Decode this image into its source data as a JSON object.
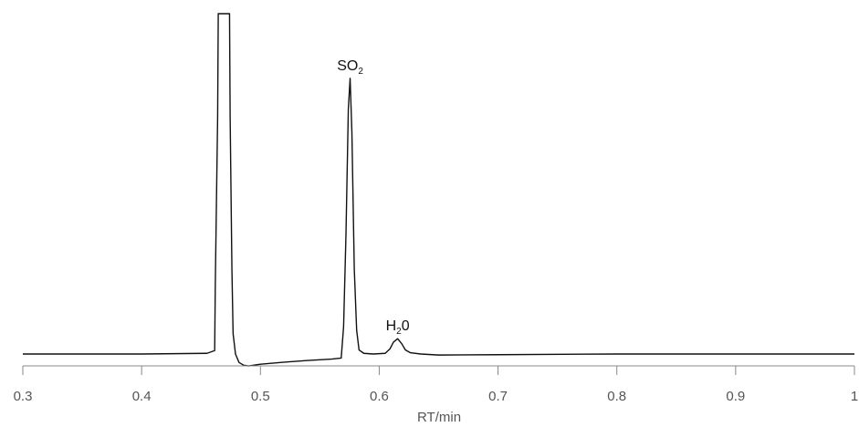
{
  "chart_data": {
    "type": "line",
    "title": "",
    "xlabel": "RT/min",
    "ylabel": "",
    "xlim": [
      0.3,
      1.0
    ],
    "ylim": [
      -0.04,
      1.0
    ],
    "grid": false,
    "legend": "none",
    "line_color": "#111111",
    "axis_color": "#888888",
    "x_ticks": [
      0.3,
      0.4,
      0.5,
      0.6,
      0.7,
      0.8,
      0.9,
      1.0
    ],
    "x_tick_labels": [
      "0.3",
      "0.4",
      "0.5",
      "0.6",
      "0.7",
      "0.8",
      "0.9",
      "1"
    ],
    "series": [
      {
        "name": "",
        "x": [
          0.3,
          0.4,
          0.455,
          0.4615,
          0.462,
          0.464,
          0.4645,
          0.474,
          0.4745,
          0.476,
          0.477,
          0.479,
          0.482,
          0.486,
          0.49,
          0.5,
          0.52,
          0.54,
          0.56,
          0.568,
          0.57,
          0.572,
          0.574,
          0.5755,
          0.577,
          0.579,
          0.581,
          0.583,
          0.587,
          0.595,
          0.605,
          0.609,
          0.612,
          0.6155,
          0.619,
          0.622,
          0.626,
          0.635,
          0.65,
          0.7,
          0.8,
          0.9,
          1.0
        ],
        "y": [
          0.0,
          0.0,
          0.002,
          0.01,
          0.2,
          0.7,
          1.0,
          1.0,
          0.7,
          0.25,
          0.06,
          0.0,
          -0.025,
          -0.033,
          -0.035,
          -0.03,
          -0.024,
          -0.019,
          -0.015,
          -0.012,
          0.08,
          0.35,
          0.72,
          0.81,
          0.65,
          0.25,
          0.07,
          0.012,
          0.002,
          0.0,
          0.002,
          0.015,
          0.035,
          0.045,
          0.03,
          0.012,
          0.004,
          0.0,
          -0.003,
          -0.002,
          0.0,
          0.0,
          0.0
        ]
      }
    ],
    "annotations": [
      {
        "x": 0.5755,
        "y": 0.81,
        "label": "SO",
        "subscript": "2",
        "after": ""
      },
      {
        "x": 0.6155,
        "y": 0.045,
        "label": "H",
        "subscript": "2",
        "after": "0"
      }
    ]
  }
}
